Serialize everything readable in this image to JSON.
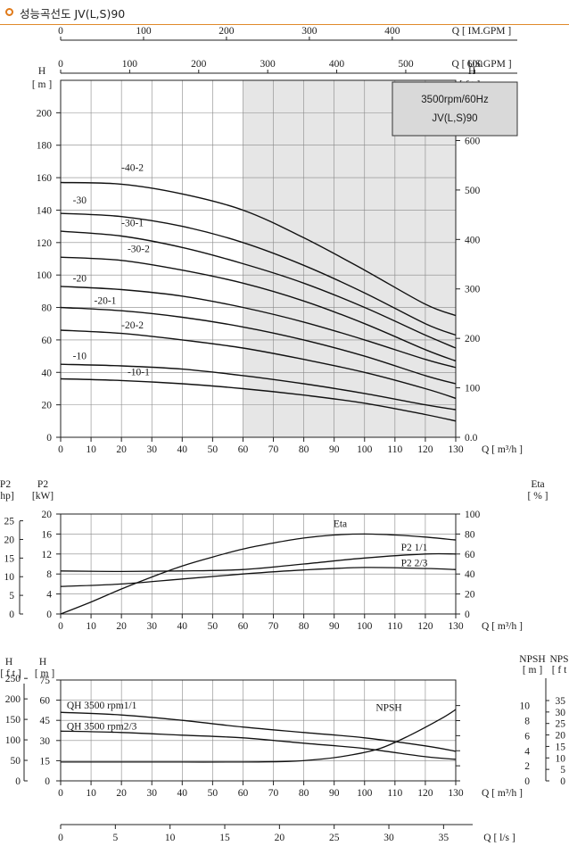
{
  "header": {
    "title": "성능곡선도 JV(L,S)90"
  },
  "chart_data": [
    {
      "type": "line",
      "panel": "head",
      "info_box": {
        "line1": "3500rpm/60Hz",
        "line2": "JV(L,S)90"
      },
      "x_label": "Q [ m³/h ]",
      "x_ticks": [
        "0",
        "10",
        "20",
        "30",
        "40",
        "50",
        "60",
        "70",
        "80",
        "90",
        "100",
        "110",
        "120",
        "130"
      ],
      "xlim": [
        0,
        130
      ],
      "ylim": [
        0,
        220
      ],
      "y_left_label_top": "H",
      "y_left_unit": "[ m ]",
      "y_left_ticks": [
        "0",
        "20",
        "40",
        "60",
        "80",
        "100",
        "120",
        "140",
        "160",
        "180",
        "200"
      ],
      "y_right_label_top": "H",
      "y_right_unit": "[ f t ]",
      "y_right_ticks": [
        "0.0",
        "100",
        "200",
        "300",
        "400",
        "500",
        "600"
      ],
      "top_axis_im": {
        "label": "Q  [ IM.GPM ]",
        "ticks": [
          "0",
          "100",
          "200",
          "300",
          "400"
        ]
      },
      "top_axis_us": {
        "label": "Q  [ US.GPM ]",
        "ticks": [
          "0",
          "100",
          "200",
          "300",
          "400",
          "500",
          "600"
        ]
      },
      "shaded_range": [
        60,
        130
      ],
      "series": [
        {
          "name": "-40-2",
          "label_at": [
            20,
            163
          ],
          "x": [
            0,
            20,
            40,
            60,
            80,
            100,
            120,
            130
          ],
          "y": [
            157,
            156,
            150,
            140,
            123,
            103,
            82,
            75
          ]
        },
        {
          "name": "-30",
          "label_at": [
            4,
            143
          ],
          "x": [
            0,
            20,
            40,
            60,
            80,
            100,
            120,
            130
          ],
          "y": [
            138,
            136,
            130,
            120,
            106,
            89,
            70,
            63
          ]
        },
        {
          "name": "-30-1",
          "label_at": [
            20,
            129
          ],
          "x": [
            0,
            20,
            40,
            60,
            80,
            100,
            120,
            130
          ],
          "y": [
            127,
            124,
            117,
            107,
            95,
            80,
            63,
            55
          ]
        },
        {
          "name": "-30-2",
          "label_at": [
            22,
            113
          ],
          "x": [
            0,
            20,
            40,
            60,
            80,
            100,
            120,
            130
          ],
          "y": [
            111,
            109,
            103,
            95,
            84,
            70,
            54,
            47
          ]
        },
        {
          "name": "-20",
          "label_at": [
            4,
            95
          ],
          "x": [
            0,
            20,
            40,
            60,
            80,
            100,
            120,
            130
          ],
          "y": [
            93,
            91,
            87,
            80,
            71,
            60,
            48,
            43
          ]
        },
        {
          "name": "-20-1",
          "label_at": [
            11,
            81
          ],
          "x": [
            0,
            20,
            40,
            60,
            80,
            100,
            120,
            130
          ],
          "y": [
            80,
            78,
            74,
            68,
            60,
            50,
            38,
            33
          ]
        },
        {
          "name": "-20-2",
          "label_at": [
            20,
            66
          ],
          "x": [
            0,
            20,
            40,
            60,
            80,
            100,
            120,
            130
          ],
          "y": [
            66,
            64,
            60,
            55,
            48,
            40,
            30,
            24
          ]
        },
        {
          "name": "-10",
          "label_at": [
            4,
            47
          ],
          "x": [
            0,
            20,
            40,
            60,
            80,
            100,
            120,
            130
          ],
          "y": [
            45,
            44,
            42,
            38,
            33,
            27,
            20,
            17
          ]
        },
        {
          "name": "-10-1",
          "label_at": [
            22,
            37
          ],
          "x": [
            0,
            20,
            40,
            60,
            80,
            100,
            120,
            130
          ],
          "y": [
            36,
            35,
            33,
            30,
            26,
            21,
            14,
            10
          ]
        }
      ]
    },
    {
      "type": "line",
      "panel": "power",
      "x_label": "Q [ m³/h ]",
      "x_ticks": [
        "0",
        "10",
        "20",
        "30",
        "40",
        "50",
        "60",
        "70",
        "80",
        "90",
        "100",
        "110",
        "120",
        "130"
      ],
      "xlim": [
        0,
        130
      ],
      "y_kw_label": "P2",
      "y_kw_unit": "[kW]",
      "y_kw_ticks": [
        "0",
        "4",
        "8",
        "12",
        "16",
        "20"
      ],
      "ylim_kw": [
        0,
        20
      ],
      "y_hp_label": "P2",
      "y_hp_unit": "hp]",
      "y_hp_ticks": [
        "0",
        "5",
        "10",
        "15",
        "20",
        "25"
      ],
      "y_eta_label": "Eta",
      "y_eta_unit": "[ % ]",
      "y_eta_ticks": [
        "0",
        "20",
        "40",
        "60",
        "80",
        "100"
      ],
      "series": [
        {
          "name": "Eta",
          "axis": "eta",
          "x": [
            0,
            10,
            20,
            30,
            40,
            50,
            60,
            70,
            80,
            90,
            100,
            110,
            120,
            130
          ],
          "y": [
            0,
            12,
            25,
            37,
            48,
            57,
            65,
            71,
            76,
            79,
            80,
            79,
            77,
            74
          ]
        },
        {
          "name": "P2  1/1",
          "axis": "kw",
          "x": [
            0,
            20,
            40,
            60,
            80,
            100,
            120,
            130
          ],
          "y": [
            8.6,
            8.5,
            8.6,
            8.9,
            10.0,
            11.2,
            12.0,
            12.0
          ]
        },
        {
          "name": "P2  2/3",
          "axis": "kw",
          "x": [
            0,
            20,
            40,
            60,
            80,
            100,
            120,
            130
          ],
          "y": [
            5.5,
            6.0,
            7.0,
            8.0,
            8.8,
            9.3,
            9.1,
            8.9
          ]
        }
      ]
    },
    {
      "type": "line",
      "panel": "npsh",
      "x_label": "Q [ m³/h ]",
      "x_ticks": [
        "0",
        "10",
        "20",
        "30",
        "40",
        "50",
        "60",
        "70",
        "80",
        "90",
        "100",
        "110",
        "120",
        "130"
      ],
      "xlim": [
        0,
        130
      ],
      "y_m_label": "H",
      "y_m_unit": "[ m ]",
      "y_m_ticks": [
        "0",
        "15",
        "30",
        "45",
        "60",
        "75"
      ],
      "y_ft_label": "H",
      "y_ft_unit": "[ f t ]",
      "y_ft_ticks": [
        "0",
        "50",
        "100",
        "150",
        "200",
        "250"
      ],
      "y_npsh_m_label": "NPSH",
      "y_npsh_m_unit": "[ m ]",
      "y_npsh_m_ticks": [
        "0",
        "2",
        "4",
        "6",
        "8",
        "10"
      ],
      "y_npsh_ft_label": "NPS",
      "y_npsh_ft_unit": "[ f t",
      "y_npsh_ft_ticks": [
        "0",
        "5",
        "10",
        "15",
        "20",
        "25",
        "30",
        "35"
      ],
      "ls_axis": {
        "label": "Q  [ l/s ]",
        "ticks": [
          "0",
          "5",
          "10",
          "15",
          "20",
          "25",
          "30",
          "35"
        ]
      },
      "series": [
        {
          "name": "QH  3500 rpm1/1",
          "axis": "m",
          "x": [
            0,
            20,
            40,
            60,
            80,
            100,
            120,
            130
          ],
          "y": [
            51,
            49,
            45,
            40,
            36,
            32,
            26,
            22
          ]
        },
        {
          "name": "QH  3500 rpm2/3",
          "axis": "m",
          "x": [
            0,
            20,
            40,
            60,
            80,
            100,
            120,
            130
          ],
          "y": [
            37,
            36,
            34,
            32,
            28,
            24,
            18,
            16
          ]
        },
        {
          "name": "NPSH",
          "axis": "m",
          "x": [
            0,
            20,
            40,
            60,
            75,
            85,
            95,
            105,
            115,
            125,
            130
          ],
          "y": [
            14,
            14,
            14,
            14,
            14.5,
            16,
            19,
            24,
            34,
            46,
            53
          ]
        }
      ]
    }
  ]
}
